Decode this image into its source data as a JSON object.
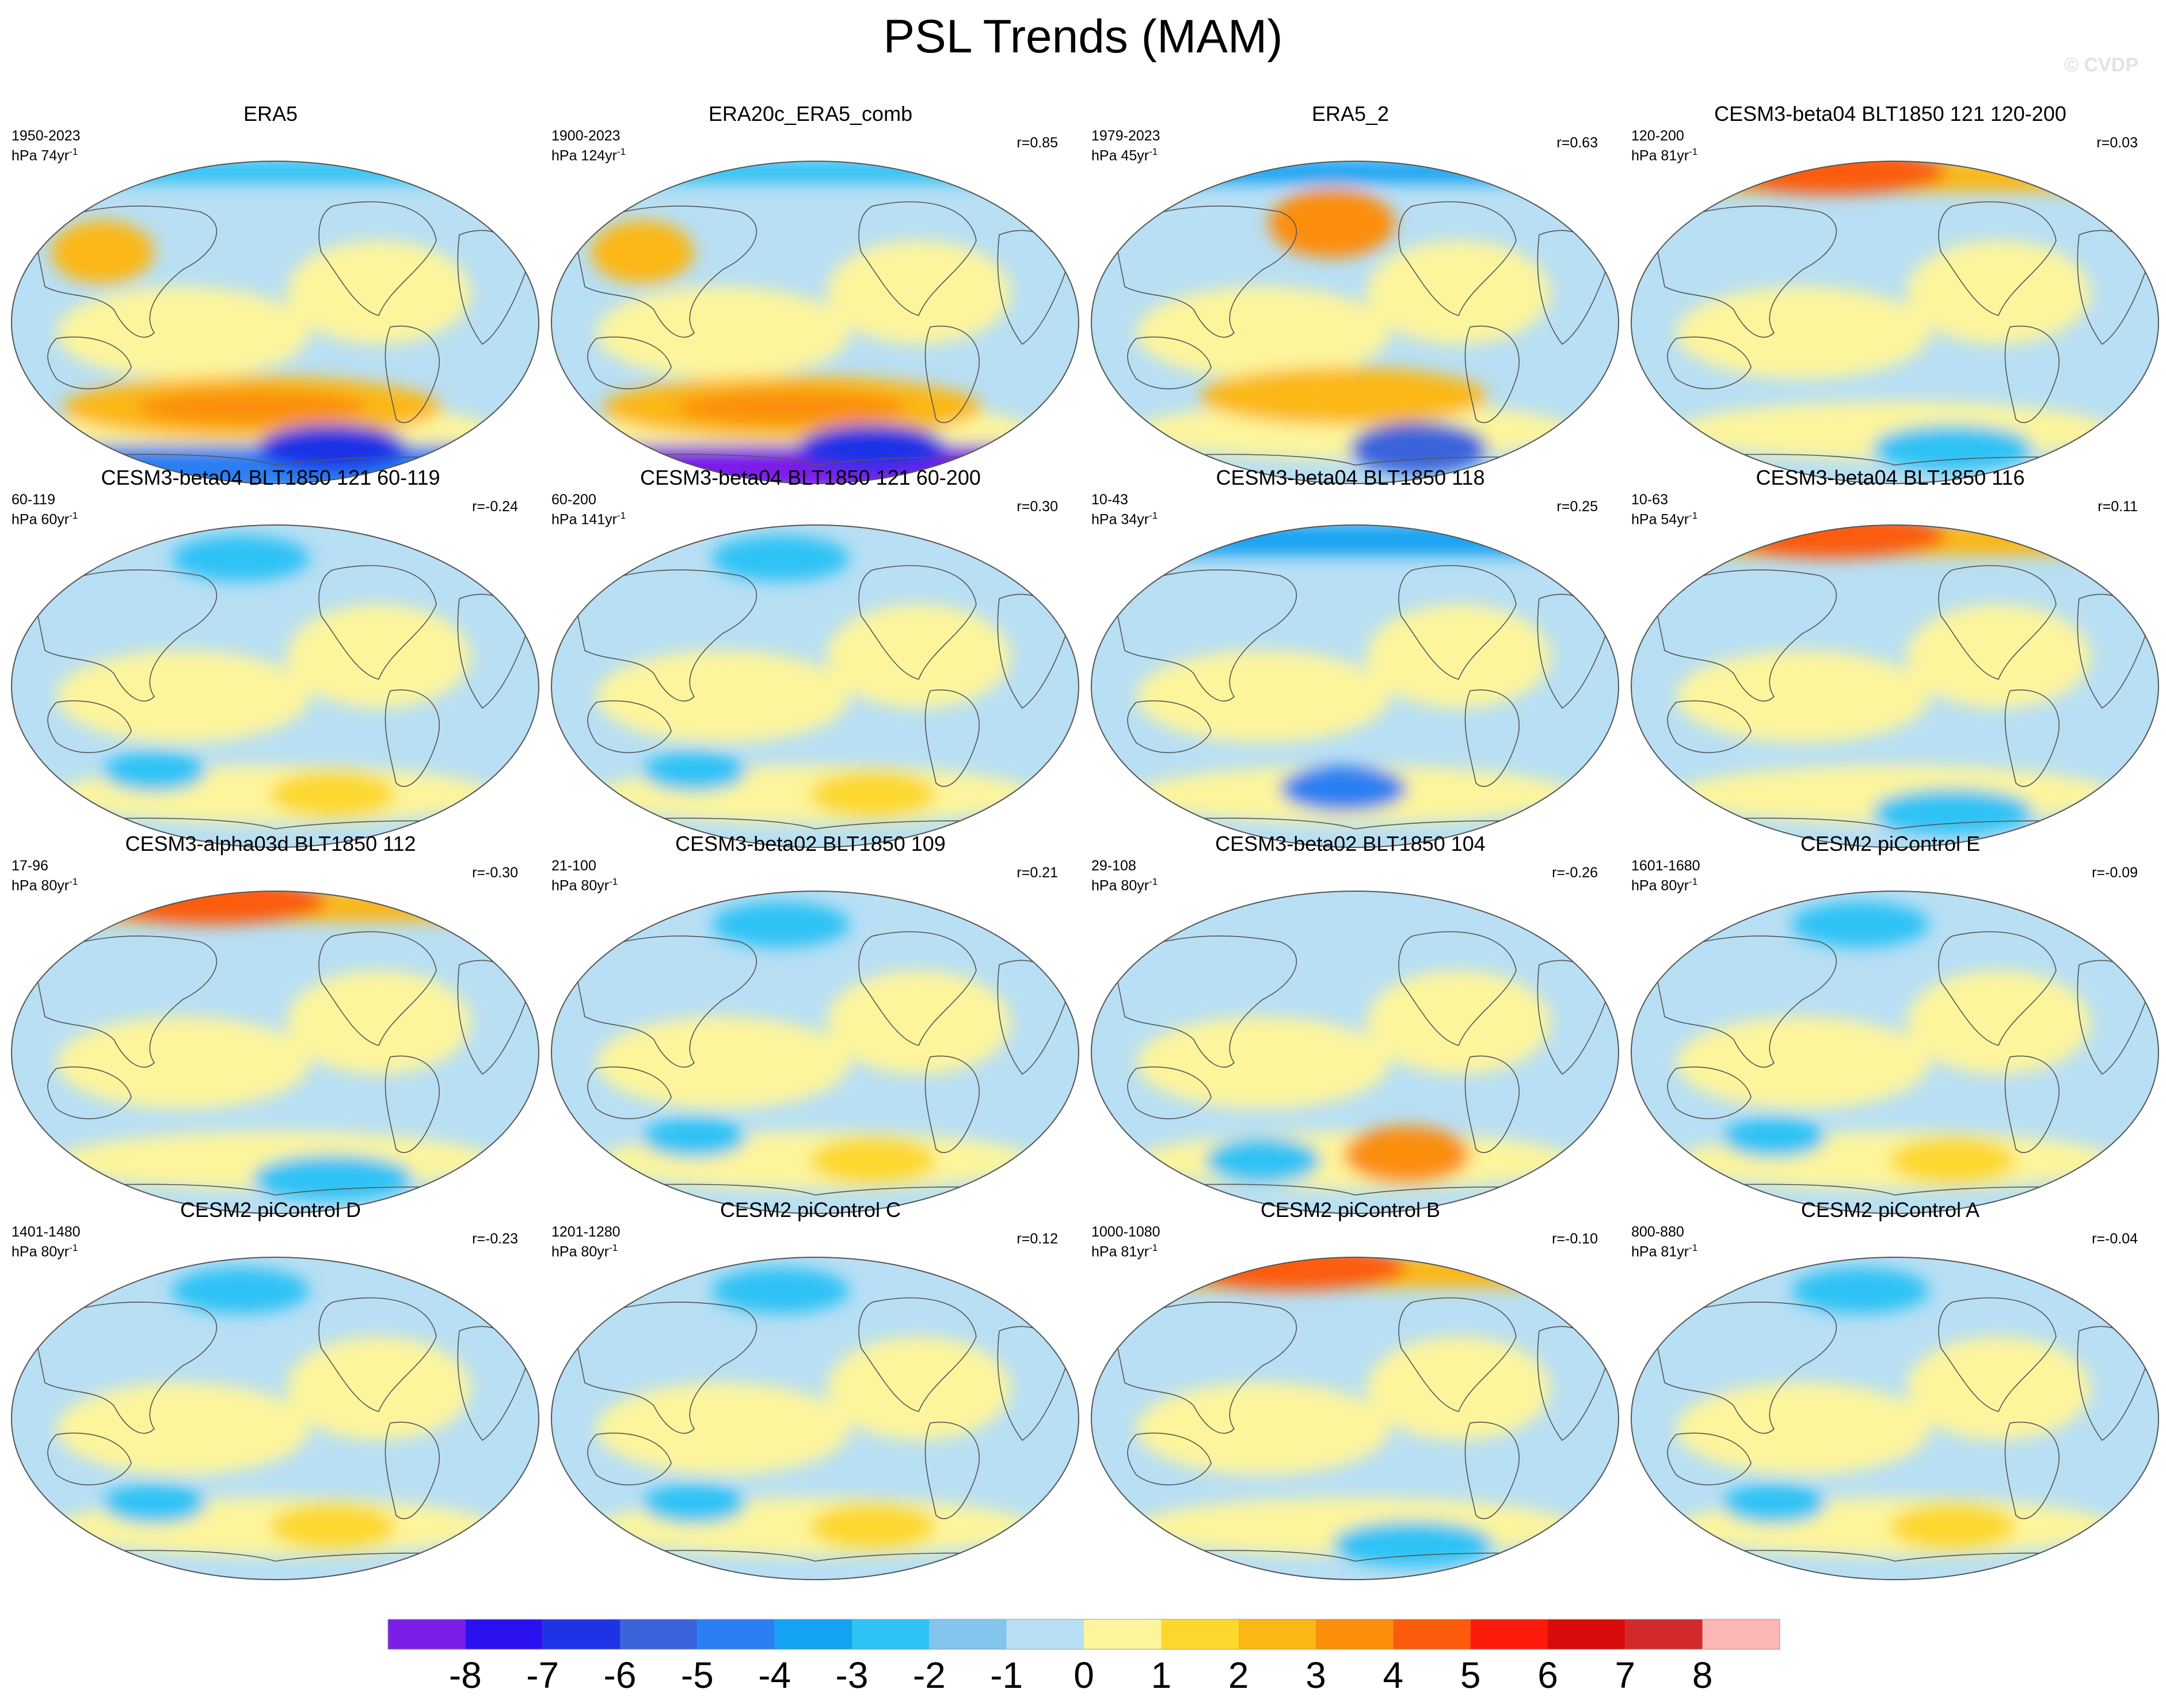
{
  "title": "PSL Trends (MAM)",
  "watermark": "© CVDP",
  "panels": [
    {
      "title": "ERA5",
      "period": "1950-2023",
      "rate": "hPa 74yr",
      "corr": ""
    },
    {
      "title": "ERA20c_ERA5_comb",
      "period": "1900-2023",
      "rate": "hPa 124yr",
      "corr": "r=0.85"
    },
    {
      "title": "ERA5_2",
      "period": "1979-2023",
      "rate": "hPa 45yr",
      "corr": "r=0.63"
    },
    {
      "title": "CESM3-beta04 BLT1850 121 120-200",
      "period": "120-200",
      "rate": "hPa 81yr",
      "corr": "r=0.03"
    },
    {
      "title": "CESM3-beta04 BLT1850 121 60-119",
      "period": "60-119",
      "rate": "hPa 60yr",
      "corr": "r=-0.24"
    },
    {
      "title": "CESM3-beta04 BLT1850 121 60-200",
      "period": "60-200",
      "rate": "hPa 141yr",
      "corr": "r=0.30"
    },
    {
      "title": "CESM3-beta04 BLT1850 118",
      "period": "10-43",
      "rate": "hPa 34yr",
      "corr": "r=0.25"
    },
    {
      "title": "CESM3-beta04 BLT1850 116",
      "period": "10-63",
      "rate": "hPa 54yr",
      "corr": "r=0.11"
    },
    {
      "title": "CESM3-alpha03d BLT1850 112",
      "period": "17-96",
      "rate": "hPa 80yr",
      "corr": "r=-0.30"
    },
    {
      "title": "CESM3-beta02 BLT1850 109",
      "period": "21-100",
      "rate": "hPa 80yr",
      "corr": "r=0.21"
    },
    {
      "title": "CESM3-beta02 BLT1850 104",
      "period": "29-108",
      "rate": "hPa 80yr",
      "corr": "r=-0.26"
    },
    {
      "title": "CESM2 piControl E",
      "period": "1601-1680",
      "rate": "hPa 80yr",
      "corr": "r=-0.09"
    },
    {
      "title": "CESM2 piControl D",
      "period": "1401-1480",
      "rate": "hPa 80yr",
      "corr": "r=-0.23"
    },
    {
      "title": "CESM2 piControl C",
      "period": "1201-1280",
      "rate": "hPa 80yr",
      "corr": "r=0.12"
    },
    {
      "title": "CESM2 piControl B",
      "period": "1000-1080",
      "rate": "hPa 81yr",
      "corr": "r=-0.10"
    },
    {
      "title": "CESM2 piControl A",
      "period": "800-880",
      "rate": "hPa 81yr",
      "corr": "r=-0.04"
    }
  ],
  "colorbar": {
    "labels": [
      "-8",
      "-7",
      "-6",
      "-5",
      "-4",
      "-3",
      "-2",
      "-1",
      "0",
      "1",
      "2",
      "3",
      "4",
      "5",
      "6",
      "7",
      "8"
    ],
    "colors": [
      "#7b1fe8",
      "#2b10f0",
      "#1e33e6",
      "#3a63dc",
      "#2a7ff2",
      "#14a2f2",
      "#2ec2f5",
      "#84c5ee",
      "#b8dff4",
      "#fdf59c",
      "#fcd82d",
      "#fbb812",
      "#fb8e0a",
      "#fb5b0a",
      "#fc1a0a",
      "#d80a0a",
      "#d22a2a",
      "#fdb6b6"
    ]
  }
}
